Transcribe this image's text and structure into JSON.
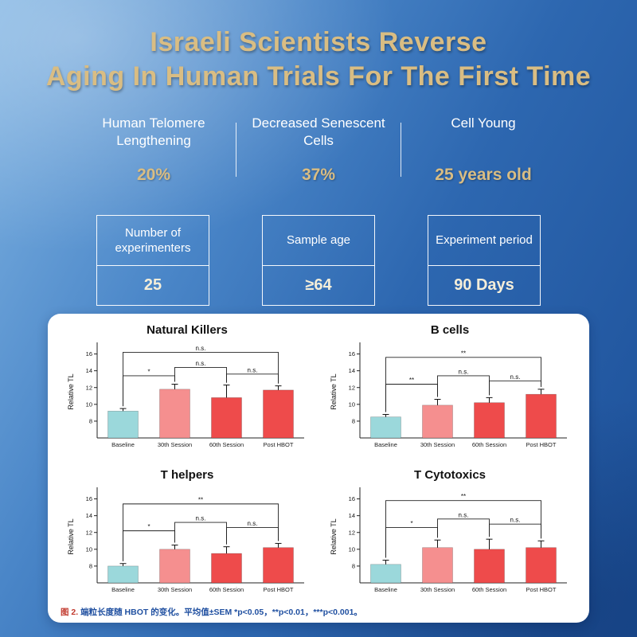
{
  "page": {
    "title_line1": "Israeli Scientists Reverse",
    "title_line2": "Aging In Human Trials For The First Time"
  },
  "stats": [
    {
      "label": "Human Telomere Lengthening",
      "value": "20%"
    },
    {
      "label": "Decreased Senescent Cells",
      "value": "37%"
    },
    {
      "label": "Cell Young",
      "value": "25 years old"
    }
  ],
  "info_boxes": [
    {
      "label": "Number of experimenters",
      "value": "25"
    },
    {
      "label": "Sample age",
      "value": "≥64"
    },
    {
      "label": "Experiment period",
      "value": "90 Days"
    }
  ],
  "figure_caption": {
    "label": "图 2.",
    "text": "端粒长度随 HBOT 的变化。平均值±SEM *p<0.05，**p<0.01，***p<0.001。"
  },
  "colors": {
    "accent_gold": "#d9bd83",
    "baseline_bar": "#9bd8db",
    "session_bar_light": "#f58f8f",
    "session_bar_red": "#ee4b4b",
    "panel_bg": "#ffffff",
    "background_blue": "#2d67b0"
  },
  "chart_data": [
    {
      "type": "bar",
      "title": "Natural Killers",
      "ylabel": "Relative TL",
      "categories": [
        "Baseline",
        "30th Session",
        "60th Session",
        "Post HBOT"
      ],
      "values": [
        9.2,
        11.8,
        10.8,
        11.7
      ],
      "errors": [
        0.3,
        0.6,
        1.5,
        0.5
      ],
      "bar_colors": [
        "#9bd8db",
        "#f58f8f",
        "#ee4b4b",
        "#ee4b4b"
      ],
      "ylim": [
        6,
        17
      ],
      "yticks": [
        8,
        10,
        12,
        14,
        16
      ],
      "annotations": [
        {
          "from": 0,
          "to": 1,
          "label": "*",
          "y": 13.4
        },
        {
          "from": 1,
          "to": 2,
          "label": "n.s.",
          "y": 14.4
        },
        {
          "from": 2,
          "to": 3,
          "label": "n.s.",
          "y": 13.6
        },
        {
          "from": 0,
          "to": 3,
          "label": "n.s.",
          "y": 16.2
        }
      ]
    },
    {
      "type": "bar",
      "title": "B cells",
      "ylabel": "Relative TL",
      "categories": [
        "Baseline",
        "30th Session",
        "60th Session",
        "Post HBOT"
      ],
      "values": [
        8.5,
        9.9,
        10.2,
        11.2
      ],
      "errors": [
        0.3,
        0.7,
        0.6,
        0.6
      ],
      "bar_colors": [
        "#9bd8db",
        "#f58f8f",
        "#ee4b4b",
        "#ee4b4b"
      ],
      "ylim": [
        6,
        17
      ],
      "yticks": [
        8,
        10,
        12,
        14,
        16
      ],
      "annotations": [
        {
          "from": 0,
          "to": 1,
          "label": "**",
          "y": 12.4
        },
        {
          "from": 1,
          "to": 2,
          "label": "n.s.",
          "y": 13.4
        },
        {
          "from": 2,
          "to": 3,
          "label": "n.s.",
          "y": 12.8
        },
        {
          "from": 0,
          "to": 3,
          "label": "**",
          "y": 15.6
        }
      ]
    },
    {
      "type": "bar",
      "title": "T helpers",
      "ylabel": "Relative TL",
      "categories": [
        "Baseline",
        "30th Session",
        "60th Session",
        "Post HBOT"
      ],
      "values": [
        8.0,
        10.0,
        9.5,
        10.2
      ],
      "errors": [
        0.3,
        0.5,
        0.8,
        0.5
      ],
      "bar_colors": [
        "#9bd8db",
        "#f58f8f",
        "#ee4b4b",
        "#ee4b4b"
      ],
      "ylim": [
        6,
        17
      ],
      "yticks": [
        8,
        10,
        12,
        14,
        16
      ],
      "annotations": [
        {
          "from": 0,
          "to": 1,
          "label": "*",
          "y": 12.2
        },
        {
          "from": 1,
          "to": 2,
          "label": "n.s.",
          "y": 13.2
        },
        {
          "from": 2,
          "to": 3,
          "label": "n.s.",
          "y": 12.6
        },
        {
          "from": 0,
          "to": 3,
          "label": "**",
          "y": 15.4
        }
      ]
    },
    {
      "type": "bar",
      "title": "T Cytotoxics",
      "ylabel": "Relative TL",
      "categories": [
        "Baseline",
        "30th Session",
        "60th Session",
        "Post HBOT"
      ],
      "values": [
        8.2,
        10.2,
        10.0,
        10.2
      ],
      "errors": [
        0.5,
        0.9,
        1.2,
        0.8
      ],
      "bar_colors": [
        "#9bd8db",
        "#f58f8f",
        "#ee4b4b",
        "#ee4b4b"
      ],
      "ylim": [
        6,
        17
      ],
      "yticks": [
        8,
        10,
        12,
        14,
        16
      ],
      "annotations": [
        {
          "from": 0,
          "to": 1,
          "label": "*",
          "y": 12.6
        },
        {
          "from": 1,
          "to": 2,
          "label": "n.s.",
          "y": 13.6
        },
        {
          "from": 2,
          "to": 3,
          "label": "n.s.",
          "y": 13.0
        },
        {
          "from": 0,
          "to": 3,
          "label": "**",
          "y": 15.8
        }
      ]
    }
  ]
}
